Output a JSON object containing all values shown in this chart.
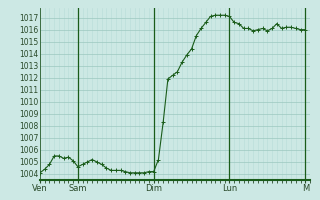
{
  "background_color": "#cce8e4",
  "grid_color_major": "#9cc8c0",
  "grid_color_minor": "#b8dcd8",
  "line_color": "#1a5c1a",
  "marker_color": "#1a5c1a",
  "x_tick_labels": [
    "Ven",
    "Sam",
    "Dim",
    "Lun",
    "M"
  ],
  "x_tick_positions": [
    0,
    8,
    24,
    40,
    56
  ],
  "ylim": [
    1003.5,
    1017.8
  ],
  "yticks": [
    1004,
    1005,
    1006,
    1007,
    1008,
    1009,
    1010,
    1011,
    1012,
    1013,
    1014,
    1015,
    1016,
    1017
  ],
  "x_values": [
    0,
    1,
    2,
    3,
    4,
    5,
    6,
    7,
    8,
    9,
    10,
    11,
    12,
    13,
    14,
    15,
    16,
    17,
    18,
    19,
    20,
    21,
    22,
    23,
    24,
    25,
    26,
    27,
    28,
    29,
    30,
    31,
    32,
    33,
    34,
    35,
    36,
    37,
    38,
    39,
    40,
    41,
    42,
    43,
    44,
    45,
    46,
    47,
    48,
    49,
    50,
    51,
    52,
    53,
    54,
    55,
    56
  ],
  "y_values": [
    1004.1,
    1004.4,
    1004.8,
    1005.5,
    1005.5,
    1005.3,
    1005.4,
    1005.1,
    1004.6,
    1004.8,
    1005.0,
    1005.2,
    1005.0,
    1004.8,
    1004.5,
    1004.3,
    1004.3,
    1004.3,
    1004.2,
    1004.1,
    1004.1,
    1004.1,
    1004.1,
    1004.2,
    1004.2,
    1005.2,
    1008.3,
    1011.9,
    1012.2,
    1012.5,
    1013.3,
    1013.9,
    1014.4,
    1015.5,
    1016.1,
    1016.6,
    1017.1,
    1017.2,
    1017.2,
    1017.2,
    1017.1,
    1016.6,
    1016.5,
    1016.1,
    1016.1,
    1015.9,
    1016.0,
    1016.1,
    1015.9,
    1016.1,
    1016.5,
    1016.1,
    1016.2,
    1016.2,
    1016.1,
    1016.0,
    1016.0
  ],
  "vline_positions": [
    8,
    24,
    40,
    56
  ],
  "xlim": [
    0,
    57
  ]
}
